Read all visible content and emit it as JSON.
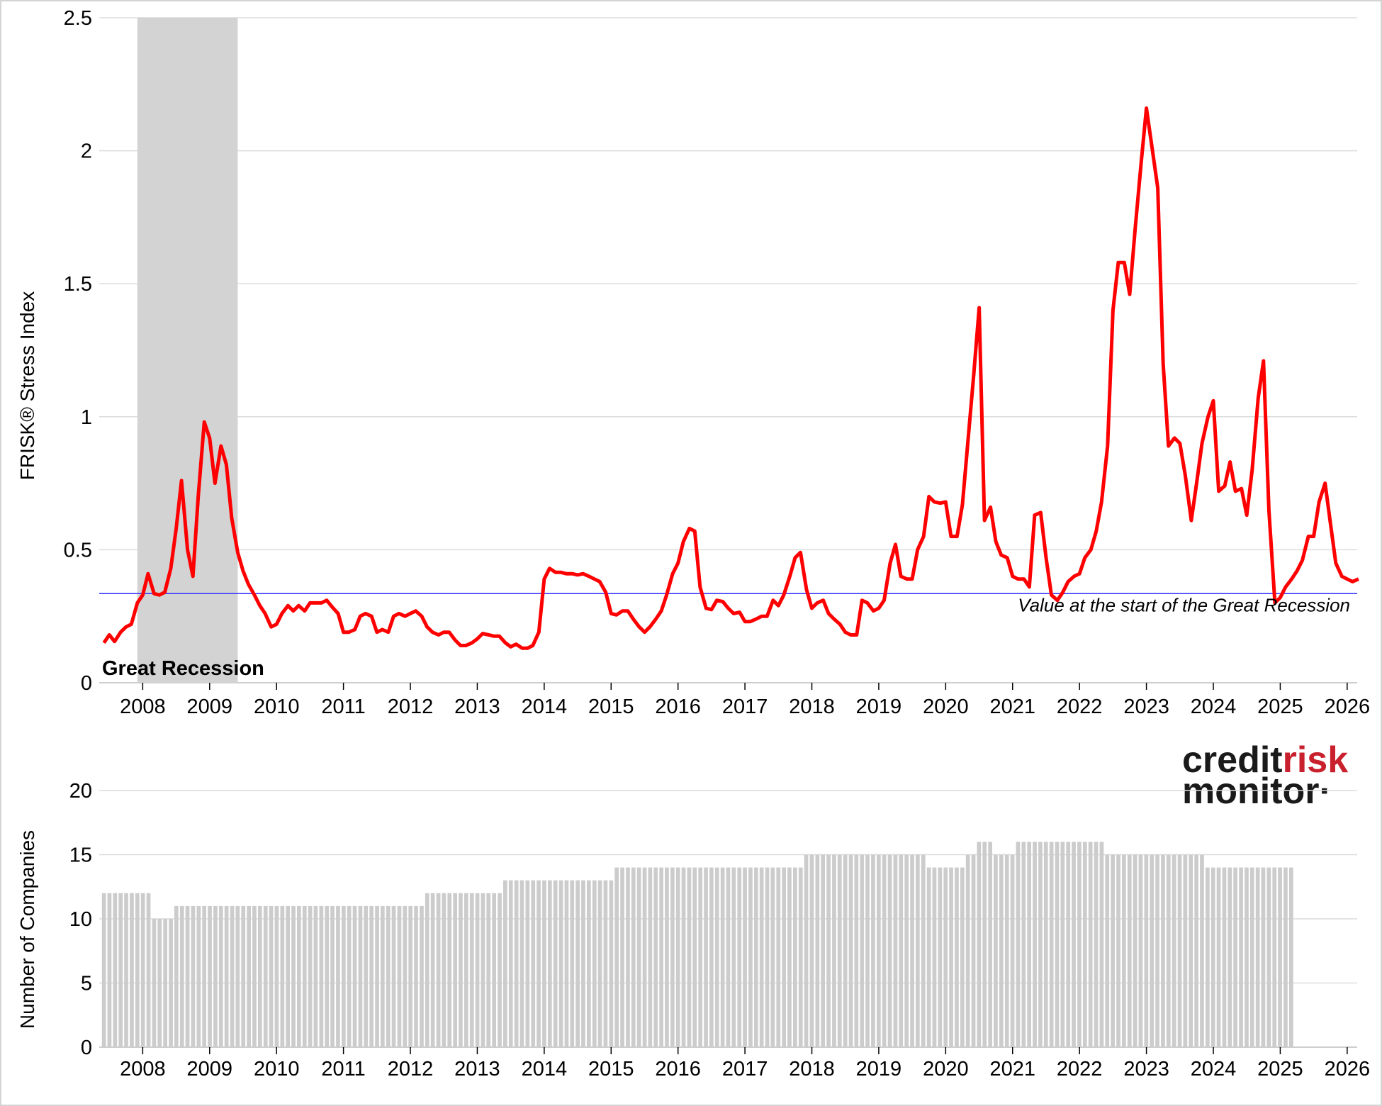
{
  "logo": {
    "part1": "credit",
    "part2": "risk",
    "part3": "monitor",
    "part3_mark": "·",
    "color_dark": "#1a1a1a",
    "color_accent": "#c8202c"
  },
  "chart_data": [
    {
      "type": "line",
      "ylabel": "FRISK® Stress Index",
      "xlabel": "",
      "ylim": [
        0,
        2.5
      ],
      "yticks": [
        "0",
        "0.5",
        "1",
        "1.5",
        "2",
        "2.5"
      ],
      "xticks": [
        "2008",
        "2009",
        "2010",
        "2011",
        "2012",
        "2013",
        "2014",
        "2015",
        "2016",
        "2017",
        "2018",
        "2019",
        "2020",
        "2021",
        "2022",
        "2023",
        "2024",
        "2025",
        "2026"
      ],
      "xlim": [
        2007.35,
        2026.15
      ],
      "grid": true,
      "line_color": "#ff0000",
      "shaded_region": {
        "label": "Great Recession",
        "x_start": 2007.92,
        "x_end": 2009.42,
        "color": "#d3d3d3"
      },
      "reference_line": {
        "value": 0.335,
        "label": "Value at the start of the Great Recession",
        "color": "#3333ff"
      },
      "series": [
        {
          "points": [
            [
              2007.42,
              0.15
            ],
            [
              2007.5,
              0.18
            ],
            [
              2007.58,
              0.155
            ],
            [
              2007.67,
              0.19
            ],
            [
              2007.75,
              0.21
            ],
            [
              2007.83,
              0.22
            ],
            [
              2007.92,
              0.3
            ],
            [
              2008.0,
              0.33
            ],
            [
              2008.08,
              0.41
            ],
            [
              2008.17,
              0.335
            ],
            [
              2008.25,
              0.33
            ],
            [
              2008.33,
              0.34
            ],
            [
              2008.42,
              0.43
            ],
            [
              2008.5,
              0.58
            ],
            [
              2008.58,
              0.76
            ],
            [
              2008.67,
              0.5
            ],
            [
              2008.75,
              0.4
            ],
            [
              2008.83,
              0.7
            ],
            [
              2008.92,
              0.98
            ],
            [
              2009.0,
              0.92
            ],
            [
              2009.08,
              0.75
            ],
            [
              2009.17,
              0.89
            ],
            [
              2009.25,
              0.82
            ],
            [
              2009.33,
              0.62
            ],
            [
              2009.42,
              0.49
            ],
            [
              2009.5,
              0.42
            ],
            [
              2009.58,
              0.37
            ],
            [
              2009.67,
              0.33
            ],
            [
              2009.75,
              0.29
            ],
            [
              2009.83,
              0.26
            ],
            [
              2009.92,
              0.21
            ],
            [
              2010.0,
              0.22
            ],
            [
              2010.08,
              0.26
            ],
            [
              2010.17,
              0.29
            ],
            [
              2010.25,
              0.27
            ],
            [
              2010.33,
              0.29
            ],
            [
              2010.42,
              0.27
            ],
            [
              2010.5,
              0.3
            ],
            [
              2010.58,
              0.3
            ],
            [
              2010.67,
              0.3
            ],
            [
              2010.75,
              0.31
            ],
            [
              2010.83,
              0.285
            ],
            [
              2010.92,
              0.26
            ],
            [
              2011.0,
              0.19
            ],
            [
              2011.08,
              0.19
            ],
            [
              2011.17,
              0.2
            ],
            [
              2011.25,
              0.25
            ],
            [
              2011.33,
              0.26
            ],
            [
              2011.42,
              0.25
            ],
            [
              2011.5,
              0.19
            ],
            [
              2011.58,
              0.2
            ],
            [
              2011.67,
              0.19
            ],
            [
              2011.75,
              0.25
            ],
            [
              2011.83,
              0.26
            ],
            [
              2011.92,
              0.25
            ],
            [
              2012.0,
              0.26
            ],
            [
              2012.08,
              0.27
            ],
            [
              2012.17,
              0.25
            ],
            [
              2012.25,
              0.21
            ],
            [
              2012.33,
              0.19
            ],
            [
              2012.42,
              0.18
            ],
            [
              2012.5,
              0.19
            ],
            [
              2012.58,
              0.19
            ],
            [
              2012.67,
              0.16
            ],
            [
              2012.75,
              0.14
            ],
            [
              2012.83,
              0.14
            ],
            [
              2012.92,
              0.15
            ],
            [
              2013.0,
              0.165
            ],
            [
              2013.08,
              0.185
            ],
            [
              2013.17,
              0.18
            ],
            [
              2013.25,
              0.175
            ],
            [
              2013.33,
              0.175
            ],
            [
              2013.42,
              0.15
            ],
            [
              2013.5,
              0.135
            ],
            [
              2013.58,
              0.145
            ],
            [
              2013.67,
              0.13
            ],
            [
              2013.75,
              0.13
            ],
            [
              2013.83,
              0.14
            ],
            [
              2013.92,
              0.19
            ],
            [
              2014.0,
              0.39
            ],
            [
              2014.08,
              0.43
            ],
            [
              2014.17,
              0.415
            ],
            [
              2014.25,
              0.415
            ],
            [
              2014.33,
              0.41
            ],
            [
              2014.42,
              0.41
            ],
            [
              2014.5,
              0.405
            ],
            [
              2014.58,
              0.41
            ],
            [
              2014.67,
              0.4
            ],
            [
              2014.75,
              0.39
            ],
            [
              2014.83,
              0.38
            ],
            [
              2014.92,
              0.34
            ],
            [
              2015.0,
              0.26
            ],
            [
              2015.08,
              0.255
            ],
            [
              2015.17,
              0.27
            ],
            [
              2015.25,
              0.27
            ],
            [
              2015.33,
              0.24
            ],
            [
              2015.42,
              0.21
            ],
            [
              2015.5,
              0.19
            ],
            [
              2015.58,
              0.21
            ],
            [
              2015.67,
              0.24
            ],
            [
              2015.75,
              0.27
            ],
            [
              2015.83,
              0.33
            ],
            [
              2015.92,
              0.41
            ],
            [
              2016.0,
              0.45
            ],
            [
              2016.08,
              0.53
            ],
            [
              2016.17,
              0.58
            ],
            [
              2016.25,
              0.57
            ],
            [
              2016.33,
              0.36
            ],
            [
              2016.42,
              0.28
            ],
            [
              2016.5,
              0.275
            ],
            [
              2016.58,
              0.31
            ],
            [
              2016.67,
              0.305
            ],
            [
              2016.75,
              0.28
            ],
            [
              2016.83,
              0.26
            ],
            [
              2016.92,
              0.265
            ],
            [
              2017.0,
              0.23
            ],
            [
              2017.08,
              0.23
            ],
            [
              2017.17,
              0.24
            ],
            [
              2017.25,
              0.25
            ],
            [
              2017.33,
              0.25
            ],
            [
              2017.42,
              0.31
            ],
            [
              2017.5,
              0.29
            ],
            [
              2017.58,
              0.33
            ],
            [
              2017.67,
              0.4
            ],
            [
              2017.75,
              0.47
            ],
            [
              2017.83,
              0.49
            ],
            [
              2017.92,
              0.35
            ],
            [
              2018.0,
              0.28
            ],
            [
              2018.08,
              0.3
            ],
            [
              2018.17,
              0.31
            ],
            [
              2018.25,
              0.26
            ],
            [
              2018.33,
              0.24
            ],
            [
              2018.42,
              0.22
            ],
            [
              2018.5,
              0.19
            ],
            [
              2018.58,
              0.18
            ],
            [
              2018.67,
              0.18
            ],
            [
              2018.75,
              0.31
            ],
            [
              2018.83,
              0.3
            ],
            [
              2018.92,
              0.27
            ],
            [
              2019.0,
              0.28
            ],
            [
              2019.08,
              0.31
            ],
            [
              2019.17,
              0.45
            ],
            [
              2019.25,
              0.52
            ],
            [
              2019.33,
              0.4
            ],
            [
              2019.42,
              0.39
            ],
            [
              2019.5,
              0.39
            ],
            [
              2019.58,
              0.5
            ],
            [
              2019.67,
              0.55
            ],
            [
              2019.75,
              0.7
            ],
            [
              2019.83,
              0.68
            ],
            [
              2019.92,
              0.675
            ],
            [
              2020.0,
              0.68
            ],
            [
              2020.08,
              0.55
            ],
            [
              2020.17,
              0.55
            ],
            [
              2020.25,
              0.67
            ],
            [
              2020.33,
              0.9
            ],
            [
              2020.42,
              1.16
            ],
            [
              2020.5,
              1.41
            ],
            [
              2020.58,
              0.61
            ],
            [
              2020.67,
              0.66
            ],
            [
              2020.75,
              0.53
            ],
            [
              2020.83,
              0.48
            ],
            [
              2020.92,
              0.47
            ],
            [
              2021.0,
              0.4
            ],
            [
              2021.08,
              0.39
            ],
            [
              2021.17,
              0.39
            ],
            [
              2021.25,
              0.36
            ],
            [
              2021.33,
              0.63
            ],
            [
              2021.42,
              0.64
            ],
            [
              2021.5,
              0.47
            ],
            [
              2021.58,
              0.33
            ],
            [
              2021.67,
              0.31
            ],
            [
              2021.75,
              0.34
            ],
            [
              2021.83,
              0.38
            ],
            [
              2021.92,
              0.4
            ],
            [
              2022.0,
              0.41
            ],
            [
              2022.08,
              0.47
            ],
            [
              2022.17,
              0.5
            ],
            [
              2022.25,
              0.57
            ],
            [
              2022.33,
              0.68
            ],
            [
              2022.42,
              0.89
            ],
            [
              2022.5,
              1.4
            ],
            [
              2022.58,
              1.58
            ],
            [
              2022.67,
              1.58
            ],
            [
              2022.75,
              1.46
            ],
            [
              2022.83,
              1.7
            ],
            [
              2022.92,
              1.95
            ],
            [
              2023.0,
              2.16
            ],
            [
              2023.08,
              2.02
            ],
            [
              2023.17,
              1.86
            ],
            [
              2023.25,
              1.2
            ],
            [
              2023.33,
              0.89
            ],
            [
              2023.42,
              0.92
            ],
            [
              2023.5,
              0.9
            ],
            [
              2023.58,
              0.78
            ],
            [
              2023.67,
              0.61
            ],
            [
              2023.75,
              0.75
            ],
            [
              2023.83,
              0.9
            ],
            [
              2023.92,
              1.0
            ],
            [
              2024.0,
              1.06
            ],
            [
              2024.08,
              0.72
            ],
            [
              2024.17,
              0.74
            ],
            [
              2024.25,
              0.83
            ],
            [
              2024.33,
              0.72
            ],
            [
              2024.42,
              0.73
            ],
            [
              2024.5,
              0.63
            ],
            [
              2024.58,
              0.8
            ],
            [
              2024.67,
              1.07
            ],
            [
              2024.75,
              1.21
            ],
            [
              2024.83,
              0.65
            ],
            [
              2024.92,
              0.3
            ],
            [
              2025.0,
              0.32
            ],
            [
              2025.08,
              0.36
            ],
            [
              2025.17,
              0.39
            ],
            [
              2025.25,
              0.42
            ],
            [
              2025.33,
              0.46
            ],
            [
              2025.42,
              0.55
            ],
            [
              2025.5,
              0.55
            ],
            [
              2025.58,
              0.68
            ],
            [
              2025.67,
              0.75
            ],
            [
              2025.75,
              0.6
            ],
            [
              2025.83,
              0.45
            ],
            [
              2025.92,
              0.4
            ],
            [
              2026.0,
              0.39
            ],
            [
              2026.08,
              0.38
            ],
            [
              2026.17,
              0.39
            ]
          ]
        }
      ]
    },
    {
      "type": "bar",
      "ylabel": "Number of Companies",
      "xlabel": "",
      "ylim": [
        0,
        20
      ],
      "yticks": [
        "0",
        "5",
        "10",
        "15",
        "20"
      ],
      "xticks": [
        "2008",
        "2009",
        "2010",
        "2011",
        "2012",
        "2013",
        "2014",
        "2015",
        "2016",
        "2017",
        "2018",
        "2019",
        "2020",
        "2021",
        "2022",
        "2023",
        "2024",
        "2025",
        "2026"
      ],
      "xlim": [
        2007.35,
        2026.15
      ],
      "grid": true,
      "bar_color": "#cccccc",
      "start": 2007.42,
      "step": 0.0833,
      "segments": [
        {
          "count": 9,
          "value": 12
        },
        {
          "count": 4,
          "value": 10
        },
        {
          "count": 45,
          "value": 11
        },
        {
          "count": 14,
          "value": 12
        },
        {
          "count": 20,
          "value": 13
        },
        {
          "count": 34,
          "value": 14
        },
        {
          "count": 22,
          "value": 15
        },
        {
          "count": 7,
          "value": 14
        },
        {
          "count": 2,
          "value": 15
        },
        {
          "count": 3,
          "value": 16
        },
        {
          "count": 4,
          "value": 15
        },
        {
          "count": 16,
          "value": 16
        },
        {
          "count": 18,
          "value": 15
        },
        {
          "count": 16,
          "value": 14
        }
      ]
    }
  ]
}
